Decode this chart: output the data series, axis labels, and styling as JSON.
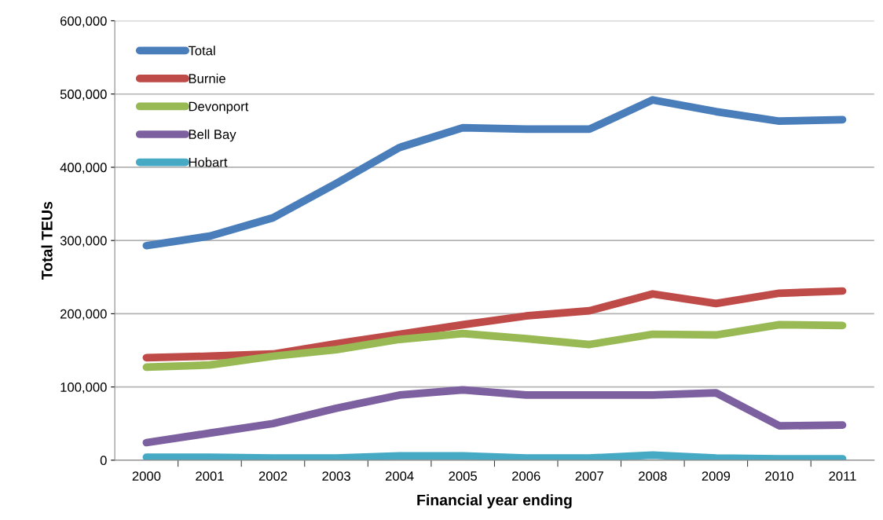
{
  "chart_data": {
    "type": "line",
    "xlabel": "Financial year ending",
    "ylabel": "Total TEUs",
    "categories": [
      "2000",
      "2001",
      "2002",
      "2003",
      "2004",
      "2005",
      "2006",
      "2007",
      "2008",
      "2009",
      "2010",
      "2011"
    ],
    "series": [
      {
        "name": "Total",
        "color": "#4a7ebb",
        "values": [
          293000,
          306000,
          331000,
          378000,
          427000,
          454000,
          452000,
          452000,
          492000,
          476000,
          463000,
          465000
        ]
      },
      {
        "name": "Burnie",
        "color": "#be4b48",
        "values": [
          140000,
          142000,
          145000,
          159000,
          172000,
          185000,
          197000,
          204000,
          227000,
          214000,
          228000,
          231000
        ]
      },
      {
        "name": "Devonport",
        "color": "#98b954",
        "values": [
          127000,
          130000,
          142000,
          151000,
          165000,
          173000,
          166000,
          158000,
          172000,
          171000,
          185000,
          184000
        ]
      },
      {
        "name": "Bell Bay",
        "color": "#7d60a0",
        "values": [
          24000,
          37000,
          50000,
          71000,
          89000,
          96000,
          89000,
          89000,
          89000,
          92000,
          47000,
          48000
        ]
      },
      {
        "name": "Hobart",
        "color": "#46aac5",
        "values": [
          4000,
          4000,
          3000,
          3000,
          6000,
          6000,
          3000,
          3000,
          7000,
          3000,
          2000,
          2000
        ]
      }
    ],
    "ylim": [
      0,
      600000
    ],
    "yticks": [
      {
        "value": 0,
        "label": "0"
      },
      {
        "value": 100000,
        "label": "100,000"
      },
      {
        "value": 200000,
        "label": "200,000"
      },
      {
        "value": 300000,
        "label": "300,000"
      },
      {
        "value": 400000,
        "label": "400,000"
      },
      {
        "value": 500000,
        "label": "500,000"
      },
      {
        "value": 600000,
        "label": "600,000"
      }
    ],
    "grid": "y",
    "legend": "top left",
    "marker": "none",
    "line_style": "solid"
  }
}
